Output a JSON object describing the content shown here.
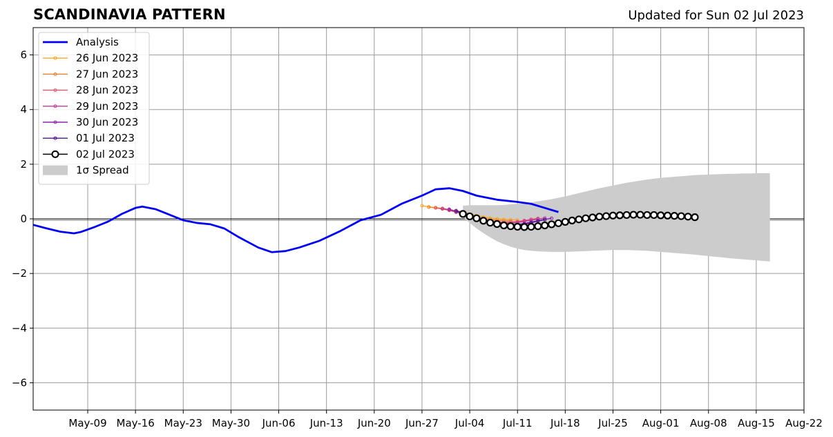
{
  "chart_data": {
    "type": "line",
    "title": "SCANDINAVIA PATTERN",
    "subtitle": "Updated for Sun 02 Jul 2023",
    "xlabel": "",
    "ylabel": "",
    "xlim": [
      "2023-05-01",
      "2023-08-22"
    ],
    "ylim": [
      -7,
      7
    ],
    "xticks": [
      "2023-05-09",
      "2023-05-16",
      "2023-05-23",
      "2023-05-30",
      "2023-06-06",
      "2023-06-13",
      "2023-06-20",
      "2023-06-27",
      "2023-07-04",
      "2023-07-11",
      "2023-07-18",
      "2023-07-25",
      "2023-08-01",
      "2023-08-08",
      "2023-08-15",
      "2023-08-22"
    ],
    "xtick_labels": [
      "May-09",
      "May-16",
      "May-23",
      "May-30",
      "Jun-06",
      "Jun-13",
      "Jun-20",
      "Jun-27",
      "Jul-04",
      "Jul-11",
      "Jul-18",
      "Jul-25",
      "Aug-01",
      "Aug-08",
      "Aug-15",
      "Aug-22"
    ],
    "yticks": [
      -6,
      -4,
      -2,
      0,
      2,
      4,
      6
    ],
    "ytick_labels": [
      "−6",
      "−4",
      "−2",
      "0",
      "2",
      "4",
      "6"
    ],
    "grid": true,
    "legend_position": "top-left",
    "analysis": {
      "name": "Analysis",
      "color": "#0000ee",
      "points": [
        [
          "2023-05-01",
          -0.22
        ],
        [
          "2023-05-03",
          -0.35
        ],
        [
          "2023-05-05",
          -0.47
        ],
        [
          "2023-05-07",
          -0.53
        ],
        [
          "2023-05-08",
          -0.48
        ],
        [
          "2023-05-10",
          -0.3
        ],
        [
          "2023-05-12",
          -0.1
        ],
        [
          "2023-05-14",
          0.18
        ],
        [
          "2023-05-16",
          0.4
        ],
        [
          "2023-05-17",
          0.45
        ],
        [
          "2023-05-19",
          0.35
        ],
        [
          "2023-05-21",
          0.15
        ],
        [
          "2023-05-23",
          -0.05
        ],
        [
          "2023-05-25",
          -0.15
        ],
        [
          "2023-05-27",
          -0.2
        ],
        [
          "2023-05-29",
          -0.35
        ],
        [
          "2023-05-31",
          -0.65
        ],
        [
          "2023-06-03",
          -1.05
        ],
        [
          "2023-06-05",
          -1.22
        ],
        [
          "2023-06-07",
          -1.18
        ],
        [
          "2023-06-09",
          -1.05
        ],
        [
          "2023-06-12",
          -0.8
        ],
        [
          "2023-06-15",
          -0.45
        ],
        [
          "2023-06-18",
          -0.05
        ],
        [
          "2023-06-21",
          0.15
        ],
        [
          "2023-06-24",
          0.55
        ],
        [
          "2023-06-27",
          0.85
        ],
        [
          "2023-06-29",
          1.08
        ],
        [
          "2023-07-01",
          1.12
        ],
        [
          "2023-07-03",
          1.02
        ],
        [
          "2023-07-05",
          0.85
        ],
        [
          "2023-07-08",
          0.7
        ],
        [
          "2023-07-11",
          0.62
        ],
        [
          "2023-07-13",
          0.55
        ],
        [
          "2023-07-15",
          0.4
        ],
        [
          "2023-07-17",
          0.25
        ]
      ]
    },
    "series": [
      {
        "name": "26 Jun 2023",
        "color": "#f9a825",
        "start": "2023-06-27",
        "values": [
          0.48,
          0.44,
          0.41,
          0.38,
          0.34,
          0.3,
          0.25,
          0.18,
          0.12,
          0.07,
          0.03,
          0.0,
          -0.02,
          -0.03,
          -0.04
        ]
      },
      {
        "name": "27 Jun 2023",
        "color": "#ef7f2a",
        "start": "2023-06-28",
        "values": [
          0.43,
          0.4,
          0.36,
          0.31,
          0.25,
          0.18,
          0.12,
          0.06,
          0.02,
          -0.02,
          -0.05,
          -0.07,
          -0.08
        ]
      },
      {
        "name": "28 Jun 2023",
        "color": "#e0556b",
        "start": "2023-06-29",
        "values": [
          0.41,
          0.37,
          0.31,
          0.24,
          0.17,
          0.1,
          0.03,
          -0.03,
          -0.08,
          -0.11,
          -0.13,
          -0.12,
          -0.1,
          -0.06,
          -0.02,
          0.02
        ]
      },
      {
        "name": "29 Jun 2023",
        "color": "#c2399a",
        "start": "2023-06-30",
        "values": [
          0.38,
          0.33,
          0.26,
          0.19,
          0.11,
          0.03,
          -0.05,
          -0.1,
          -0.14,
          -0.16,
          -0.16,
          -0.13,
          -0.09,
          -0.05,
          -0.01,
          0.03
        ]
      },
      {
        "name": "30 Jun 2023",
        "color": "#8e24aa",
        "start": "2023-07-01",
        "values": [
          0.35,
          0.27,
          0.2,
          0.12,
          0.04,
          -0.04,
          -0.11,
          -0.17,
          -0.2,
          -0.21,
          -0.2,
          -0.17,
          -0.12,
          -0.07,
          -0.02,
          0.02
        ]
      },
      {
        "name": "01 Jul 2023",
        "color": "#4a148c",
        "start": "2023-07-02",
        "values": [
          0.3,
          0.22,
          0.13,
          0.04,
          -0.06,
          -0.14,
          -0.2,
          -0.24,
          -0.25,
          -0.24,
          -0.2,
          -0.14,
          -0.08,
          -0.03
        ]
      }
    ],
    "forecast": {
      "name": "02 Jul 2023",
      "color": "#000000",
      "start": "2023-07-03",
      "values": [
        0.18,
        0.09,
        0.02,
        -0.07,
        -0.14,
        -0.19,
        -0.24,
        -0.27,
        -0.29,
        -0.3,
        -0.29,
        -0.27,
        -0.24,
        -0.2,
        -0.16,
        -0.11,
        -0.06,
        -0.02,
        0.02,
        0.05,
        0.08,
        0.1,
        0.12,
        0.13,
        0.14,
        0.15,
        0.15,
        0.14,
        0.14,
        0.13,
        0.12,
        0.11,
        0.1,
        0.08,
        0.06
      ]
    },
    "spread": {
      "name": "1σ Spread",
      "color": "#cccccc",
      "start": "2023-07-03",
      "upper": [
        0.48,
        0.5,
        0.5,
        0.5,
        0.5,
        0.5,
        0.51,
        0.53,
        0.55,
        0.57,
        0.6,
        0.64,
        0.68,
        0.72,
        0.77,
        0.82,
        0.88,
        0.94,
        1.0,
        1.06,
        1.12,
        1.17,
        1.22,
        1.27,
        1.32,
        1.36,
        1.4,
        1.44,
        1.47,
        1.5,
        1.52,
        1.54,
        1.56,
        1.58,
        1.6,
        1.61,
        1.62,
        1.63,
        1.64,
        1.65,
        1.65,
        1.66,
        1.66,
        1.67,
        1.67,
        1.67
      ],
      "lower": [
        0.06,
        -0.15,
        -0.35,
        -0.52,
        -0.68,
        -0.82,
        -0.93,
        -1.02,
        -1.09,
        -1.14,
        -1.17,
        -1.19,
        -1.2,
        -1.21,
        -1.21,
        -1.21,
        -1.2,
        -1.19,
        -1.18,
        -1.17,
        -1.16,
        -1.15,
        -1.14,
        -1.14,
        -1.14,
        -1.15,
        -1.16,
        -1.17,
        -1.19,
        -1.21,
        -1.23,
        -1.25,
        -1.27,
        -1.29,
        -1.31,
        -1.34,
        -1.36,
        -1.39,
        -1.41,
        -1.44,
        -1.46,
        -1.48,
        -1.5,
        -1.52,
        -1.54,
        -1.56
      ]
    }
  }
}
